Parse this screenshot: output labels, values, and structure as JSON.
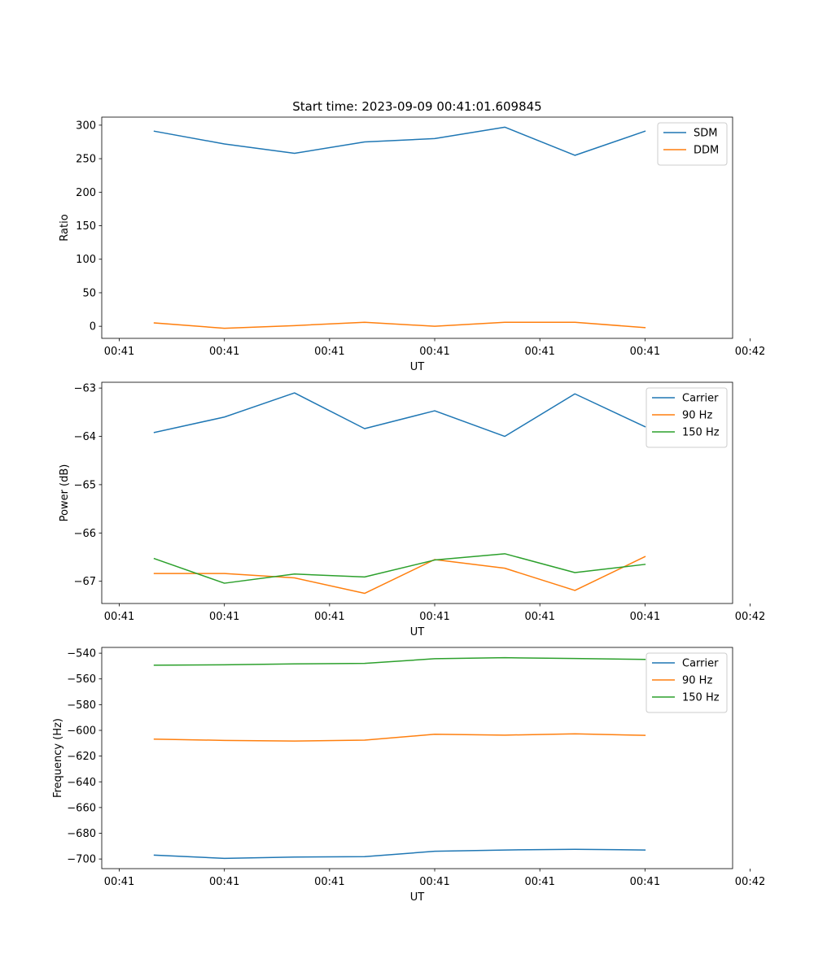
{
  "figure": {
    "title": "Start time: 2023-09-09 00:41:01.609845"
  },
  "chart_data": [
    {
      "type": "line",
      "title": "Start time: 2023-09-09 00:41:01.609845",
      "xlabel": "UT",
      "ylabel": "Ratio",
      "x": [
        1,
        2,
        3,
        4,
        5,
        6,
        7,
        8
      ],
      "xlim": [
        0.25,
        9.25
      ],
      "xticks": [
        0.5,
        2,
        3.5,
        5,
        6.5,
        8,
        9.5
      ],
      "xticklabels": [
        "00:41",
        "00:41",
        "00:41",
        "00:41",
        "00:41",
        "00:41",
        "00:42"
      ],
      "ylim": [
        -18,
        312
      ],
      "yticks": [
        0,
        50,
        100,
        150,
        200,
        250,
        300
      ],
      "yticklabels": [
        "0",
        "50",
        "100",
        "150",
        "200",
        "250",
        "300"
      ],
      "legend_position": "top-right",
      "series": [
        {
          "name": "SDM",
          "color": "#1f77b4",
          "values": [
            291,
            272,
            258,
            275,
            280,
            297,
            255,
            291
          ]
        },
        {
          "name": "DDM",
          "color": "#ff7f0e",
          "values": [
            5,
            -3,
            1,
            6,
            0,
            6,
            6,
            -2
          ]
        }
      ]
    },
    {
      "type": "line",
      "title": "",
      "xlabel": "UT",
      "ylabel": "Power (dB)",
      "x": [
        1,
        2,
        3,
        4,
        5,
        6,
        7,
        8
      ],
      "xlim": [
        0.25,
        9.25
      ],
      "xticks": [
        0.5,
        2,
        3.5,
        5,
        6.5,
        8,
        9.5
      ],
      "xticklabels": [
        "00:41",
        "00:41",
        "00:41",
        "00:41",
        "00:41",
        "00:41",
        "00:42"
      ],
      "ylim": [
        -67.46,
        -62.88
      ],
      "yticks": [
        -67,
        -66,
        -65,
        -64,
        -63
      ],
      "yticklabels": [
        "−67",
        "−66",
        "−65",
        "−64",
        "−63"
      ],
      "legend_position": "top-right",
      "series": [
        {
          "name": "Carrier",
          "color": "#1f77b4",
          "values": [
            -63.92,
            -63.6,
            -63.1,
            -63.84,
            -63.47,
            -64.0,
            -63.12,
            -63.8
          ]
        },
        {
          "name": "90 Hz",
          "color": "#ff7f0e",
          "values": [
            -66.84,
            -66.84,
            -66.93,
            -67.25,
            -66.55,
            -66.73,
            -67.19,
            -66.49
          ]
        },
        {
          "name": "150 Hz",
          "color": "#2ca02c",
          "values": [
            -66.53,
            -67.04,
            -66.85,
            -66.91,
            -66.56,
            -66.43,
            -66.82,
            -66.65
          ]
        }
      ]
    },
    {
      "type": "line",
      "title": "",
      "xlabel": "UT",
      "ylabel": "Frequency (Hz)",
      "x": [
        1,
        2,
        3,
        4,
        5,
        6,
        7,
        8
      ],
      "xlim": [
        0.25,
        9.25
      ],
      "xticks": [
        0.5,
        2,
        3.5,
        5,
        6.5,
        8,
        9.5
      ],
      "xticklabels": [
        "00:41",
        "00:41",
        "00:41",
        "00:41",
        "00:41",
        "00:41",
        "00:42"
      ],
      "ylim": [
        -707.5,
        -535.5
      ],
      "yticks": [
        -700,
        -680,
        -660,
        -640,
        -620,
        -600,
        -580,
        -560,
        -540
      ],
      "yticklabels": [
        "−700",
        "−680",
        "−660",
        "−640",
        "−620",
        "−600",
        "−580",
        "−560",
        "−540"
      ],
      "legend_position": "top-right",
      "series": [
        {
          "name": "Carrier",
          "color": "#1f77b4",
          "values": [
            -697,
            -699.5,
            -698.5,
            -698.2,
            -694,
            -693,
            -692.5,
            -693
          ]
        },
        {
          "name": "90 Hz",
          "color": "#ff7f0e",
          "values": [
            -606.8,
            -607.8,
            -608.3,
            -607.6,
            -603,
            -603.7,
            -602.7,
            -603.9
          ]
        },
        {
          "name": "150 Hz",
          "color": "#2ca02c",
          "values": [
            -549.3,
            -549,
            -548.3,
            -547.9,
            -544.3,
            -543.5,
            -544.1,
            -544.8
          ]
        }
      ]
    }
  ]
}
